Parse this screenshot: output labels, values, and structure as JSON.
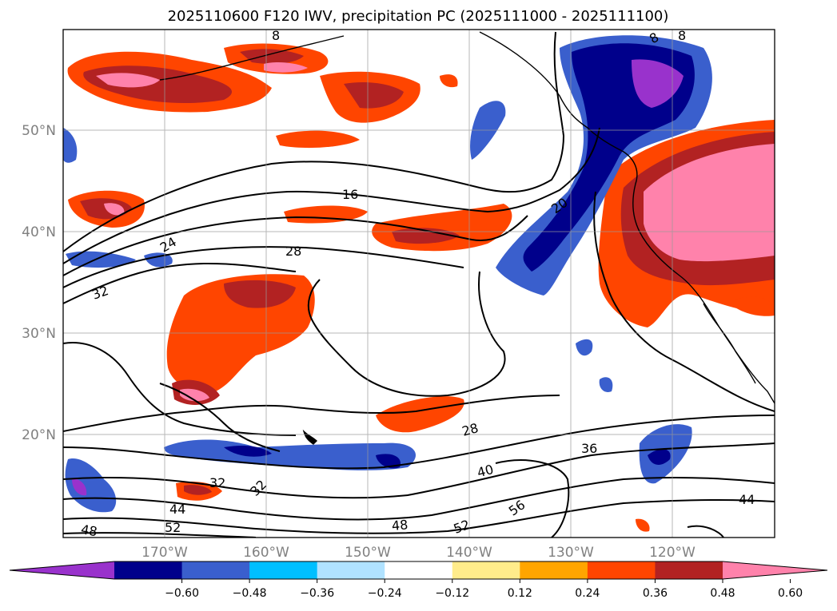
{
  "title": "2025110600 F120 IWV, precipitation PC (2025111000 - 2025111100)",
  "map": {
    "lat_ticks": [
      "50°N",
      "40°N",
      "30°N",
      "20°N"
    ],
    "lon_ticks": [
      "170°W",
      "160°W",
      "150°W",
      "140°W",
      "130°W",
      "120°W"
    ],
    "contour_labels": [
      "16",
      "20",
      "24",
      "28",
      "28",
      "32",
      "32",
      "32",
      "36",
      "40",
      "44",
      "44",
      "48",
      "48",
      "52",
      "52",
      "56",
      "8",
      "8",
      "8"
    ],
    "grid": true
  },
  "colorbar": {
    "ticks": [
      "−0.60",
      "−0.48",
      "−0.36",
      "−0.24",
      "−0.12",
      "0.12",
      "0.24",
      "0.36",
      "0.48",
      "0.60"
    ],
    "colors": [
      "#9932cc",
      "#00008b",
      "#3a5fcd",
      "#00bfff",
      "#b0e2ff",
      "#ffffff",
      "#ffec8b",
      "#ffa500",
      "#ff4500",
      "#b22222",
      "#ff82ab"
    ],
    "extend": "both"
  }
}
